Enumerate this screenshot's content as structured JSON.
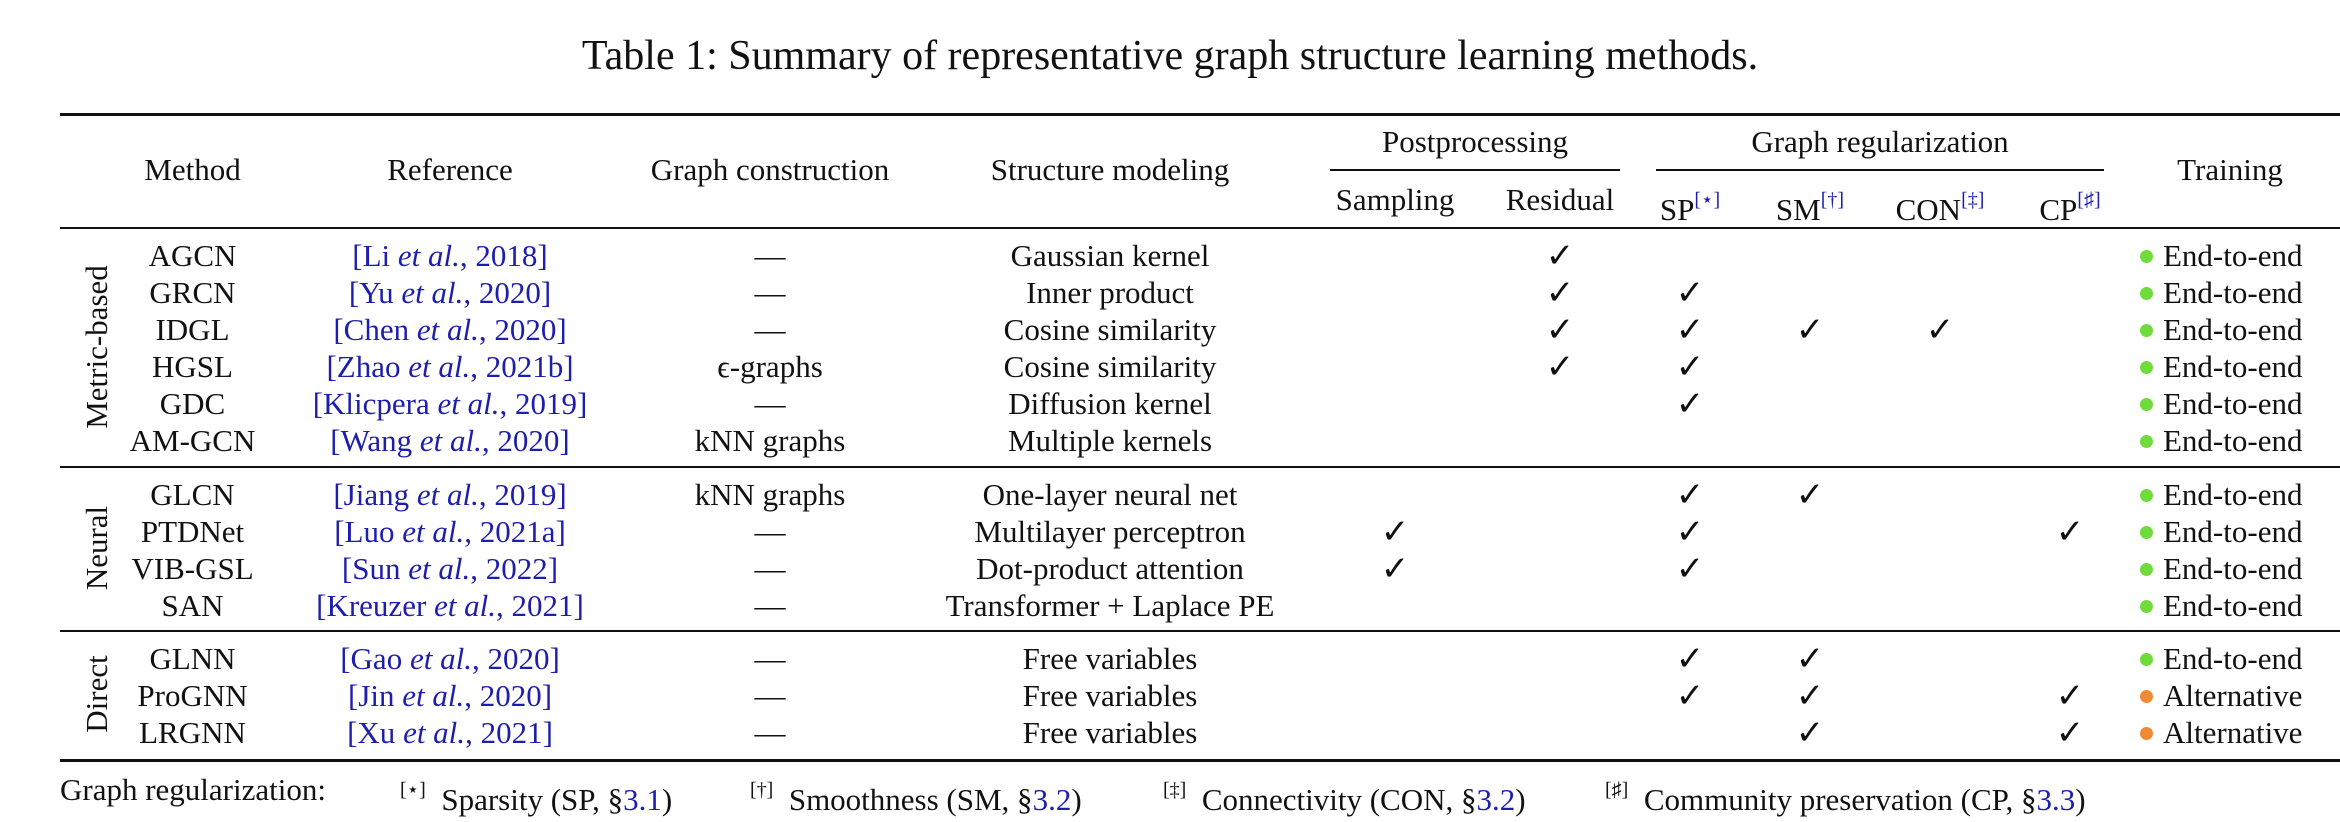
{
  "caption": "Table 1: Summary of representative graph structure learning methods.",
  "headers": {
    "method": "Method",
    "reference": "Reference",
    "graph_construction": "Graph construction",
    "structure_modeling": "Structure modeling",
    "postprocessing": "Postprocessing",
    "sampling": "Sampling",
    "residual": "Residual",
    "graph_regularization": "Graph regularization",
    "sp": "SP",
    "sp_mark": "[⋆]",
    "sm": "SM",
    "sm_mark": "[†]",
    "con": "CON",
    "con_mark": "[‡]",
    "cp": "CP",
    "cp_mark": "[♯]",
    "training": "Training"
  },
  "groups": [
    "Metric-based",
    "Neural",
    "Direct"
  ],
  "check_glyph": "✓",
  "colors": {
    "end_to_end": "#6fdc3c",
    "alternative": "#f08a35",
    "link": "#1d1dae"
  },
  "rows": [
    {
      "method": "AGCN",
      "ref_pre": "[Li ",
      "ref_etal": "et al.",
      "ref_post": ", 2018]",
      "gc": "—",
      "sm_text": "Gaussian kernel",
      "checks": [
        false,
        true,
        false,
        false,
        false,
        false
      ],
      "train": "End-to-end",
      "train_type": "end_to_end"
    },
    {
      "method": "GRCN",
      "ref_pre": "[Yu ",
      "ref_etal": "et al.",
      "ref_post": ", 2020]",
      "gc": "—",
      "sm_text": "Inner product",
      "checks": [
        false,
        true,
        true,
        false,
        false,
        false
      ],
      "train": "End-to-end",
      "train_type": "end_to_end"
    },
    {
      "method": "IDGL",
      "ref_pre": "[Chen ",
      "ref_etal": "et al.",
      "ref_post": ", 2020]",
      "gc": "—",
      "sm_text": "Cosine similarity",
      "checks": [
        false,
        true,
        true,
        true,
        true,
        false
      ],
      "train": "End-to-end",
      "train_type": "end_to_end"
    },
    {
      "method": "HGSL",
      "ref_pre": "[Zhao ",
      "ref_etal": "et al.",
      "ref_post": ", 2021b]",
      "gc": "ϵ-graphs",
      "sm_text": "Cosine similarity",
      "checks": [
        false,
        true,
        true,
        false,
        false,
        false
      ],
      "train": "End-to-end",
      "train_type": "end_to_end"
    },
    {
      "method": "GDC",
      "ref_pre": "[Klicpera ",
      "ref_etal": "et al.",
      "ref_post": ", 2019]",
      "gc": "—",
      "sm_text": "Diffusion kernel",
      "checks": [
        false,
        false,
        true,
        false,
        false,
        false
      ],
      "train": "End-to-end",
      "train_type": "end_to_end"
    },
    {
      "method": "AM-GCN",
      "ref_pre": "[Wang ",
      "ref_etal": "et al.",
      "ref_post": ", 2020]",
      "gc": "kNN graphs",
      "sm_text": "Multiple kernels",
      "checks": [
        false,
        false,
        false,
        false,
        false,
        false
      ],
      "train": "End-to-end",
      "train_type": "end_to_end"
    },
    {
      "method": "GLCN",
      "ref_pre": "[Jiang ",
      "ref_etal": "et al.",
      "ref_post": ", 2019]",
      "gc": "kNN graphs",
      "sm_text": "One-layer neural net",
      "checks": [
        false,
        false,
        true,
        true,
        false,
        false
      ],
      "train": "End-to-end",
      "train_type": "end_to_end"
    },
    {
      "method": "PTDNet",
      "ref_pre": "[Luo ",
      "ref_etal": "et al.",
      "ref_post": ", 2021a]",
      "gc": "—",
      "sm_text": "Multilayer perceptron",
      "checks": [
        true,
        false,
        true,
        false,
        false,
        true
      ],
      "train": "End-to-end",
      "train_type": "end_to_end"
    },
    {
      "method": "VIB-GSL",
      "ref_pre": "[Sun ",
      "ref_etal": "et al.",
      "ref_post": ", 2022]",
      "gc": "—",
      "sm_text": "Dot-product attention",
      "checks": [
        true,
        false,
        true,
        false,
        false,
        false
      ],
      "train": "End-to-end",
      "train_type": "end_to_end"
    },
    {
      "method": "SAN",
      "ref_pre": "[Kreuzer ",
      "ref_etal": "et al.",
      "ref_post": ", 2021]",
      "gc": "—",
      "sm_text": "Transformer + Laplace PE",
      "checks": [
        false,
        false,
        false,
        false,
        false,
        false
      ],
      "train": "End-to-end",
      "train_type": "end_to_end"
    },
    {
      "method": "GLNN",
      "ref_pre": "[Gao ",
      "ref_etal": "et al.",
      "ref_post": ", 2020]",
      "gc": "—",
      "sm_text": "Free variables",
      "checks": [
        false,
        false,
        true,
        true,
        false,
        false
      ],
      "train": "End-to-end",
      "train_type": "end_to_end"
    },
    {
      "method": "ProGNN",
      "ref_pre": "[Jin ",
      "ref_etal": "et al.",
      "ref_post": ", 2020]",
      "gc": "—",
      "sm_text": "Free variables",
      "checks": [
        false,
        false,
        true,
        true,
        false,
        true
      ],
      "train": "Alternative",
      "train_type": "alternative"
    },
    {
      "method": "LRGNN",
      "ref_pre": "[Xu ",
      "ref_etal": "et al.",
      "ref_post": ", 2021]",
      "gc": "—",
      "sm_text": "Free variables",
      "checks": [
        false,
        false,
        false,
        true,
        false,
        true
      ],
      "train": "Alternative",
      "train_type": "alternative"
    }
  ],
  "footer": {
    "lead": "Graph regularization:",
    "items": [
      {
        "mark": "[⋆]",
        "text": "Sparsity (SP, §",
        "sec": "3.1",
        "close": ")"
      },
      {
        "mark": "[†]",
        "text": "Smoothness (SM, §",
        "sec": "3.2",
        "close": ")"
      },
      {
        "mark": "[‡]",
        "text": "Connectivity (CON, §",
        "sec": "3.2",
        "close": ")"
      },
      {
        "mark": "[♯]",
        "text": "Community preservation (CP, §",
        "sec": "3.3",
        "close": ")"
      }
    ]
  }
}
